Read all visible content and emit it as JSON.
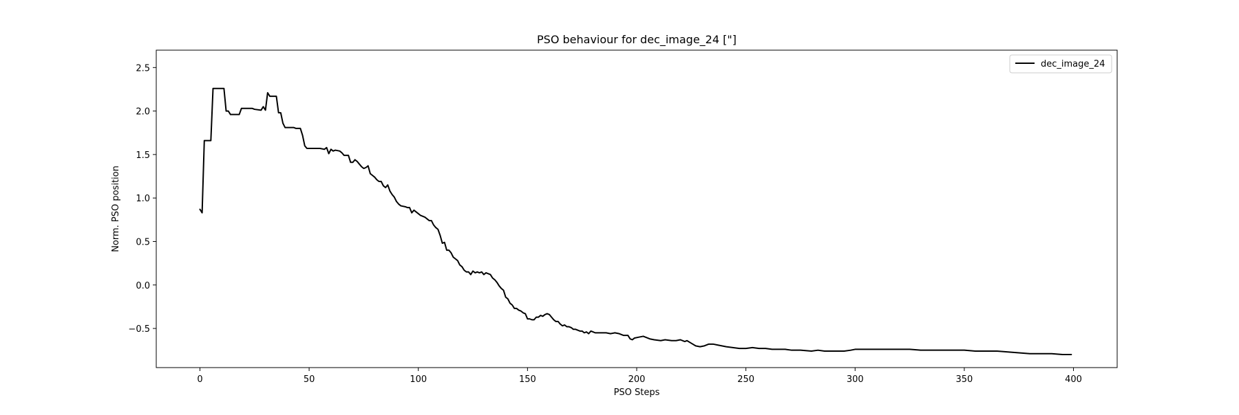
{
  "chart_data": {
    "type": "line",
    "title": "PSO behaviour for dec_image_24 [\"]",
    "xlabel": "PSO Steps",
    "ylabel": "Norm. PSO position",
    "xlim": [
      -20,
      420
    ],
    "ylim": [
      -0.95,
      2.7
    ],
    "xticks": [
      0,
      50,
      100,
      150,
      200,
      250,
      300,
      350,
      400
    ],
    "yticks": [
      -0.5,
      0.0,
      0.5,
      1.0,
      1.5,
      2.0,
      2.5
    ],
    "xtick_labels": [
      "0",
      "50",
      "100",
      "150",
      "200",
      "250",
      "300",
      "350",
      "400"
    ],
    "ytick_labels": [
      "−0.5",
      "0.0",
      "0.5",
      "1.0",
      "1.5",
      "2.0",
      "2.5"
    ],
    "grid": false,
    "legend": {
      "position": "top-right",
      "entries": [
        "dec_image_24"
      ]
    },
    "series": [
      {
        "name": "dec_image_24",
        "color": "#000000",
        "points": [
          [
            0,
            0.87
          ],
          [
            1,
            0.83
          ],
          [
            2,
            1.66
          ],
          [
            5,
            1.66
          ],
          [
            6,
            2.26
          ],
          [
            11,
            2.26
          ],
          [
            12,
            2.0
          ],
          [
            13,
            2.0
          ],
          [
            14,
            1.96
          ],
          [
            18,
            1.96
          ],
          [
            19,
            2.03
          ],
          [
            24,
            2.03
          ],
          [
            25,
            2.02
          ],
          [
            28,
            2.01
          ],
          [
            29,
            2.05
          ],
          [
            30,
            2.01
          ],
          [
            31,
            2.21
          ],
          [
            32,
            2.17
          ],
          [
            35,
            2.17
          ],
          [
            36,
            1.98
          ],
          [
            37,
            1.98
          ],
          [
            38,
            1.86
          ],
          [
            39,
            1.81
          ],
          [
            43,
            1.81
          ],
          [
            44,
            1.8
          ],
          [
            46,
            1.8
          ],
          [
            47,
            1.72
          ],
          [
            48,
            1.6
          ],
          [
            49,
            1.57
          ],
          [
            55,
            1.57
          ],
          [
            57,
            1.56
          ],
          [
            58,
            1.58
          ],
          [
            59,
            1.51
          ],
          [
            60,
            1.56
          ],
          [
            61,
            1.54
          ],
          [
            62,
            1.55
          ],
          [
            64,
            1.54
          ],
          [
            65,
            1.52
          ],
          [
            66,
            1.49
          ],
          [
            68,
            1.49
          ],
          [
            69,
            1.41
          ],
          [
            70,
            1.41
          ],
          [
            71,
            1.44
          ],
          [
            72,
            1.42
          ],
          [
            73,
            1.39
          ],
          [
            74,
            1.36
          ],
          [
            75,
            1.34
          ],
          [
            76,
            1.35
          ],
          [
            77,
            1.37
          ],
          [
            78,
            1.28
          ],
          [
            79,
            1.26
          ],
          [
            80,
            1.24
          ],
          [
            81,
            1.21
          ],
          [
            82,
            1.19
          ],
          [
            83,
            1.19
          ],
          [
            84,
            1.14
          ],
          [
            85,
            1.12
          ],
          [
            86,
            1.15
          ],
          [
            87,
            1.08
          ],
          [
            88,
            1.04
          ],
          [
            89,
            1.01
          ],
          [
            90,
            0.96
          ],
          [
            91,
            0.93
          ],
          [
            92,
            0.91
          ],
          [
            94,
            0.9
          ],
          [
            95,
            0.89
          ],
          [
            96,
            0.89
          ],
          [
            97,
            0.83
          ],
          [
            98,
            0.86
          ],
          [
            99,
            0.84
          ],
          [
            100,
            0.82
          ],
          [
            101,
            0.8
          ],
          [
            103,
            0.78
          ],
          [
            104,
            0.76
          ],
          [
            105,
            0.74
          ],
          [
            106,
            0.74
          ],
          [
            107,
            0.69
          ],
          [
            108,
            0.66
          ],
          [
            109,
            0.64
          ],
          [
            110,
            0.57
          ],
          [
            111,
            0.48
          ],
          [
            112,
            0.49
          ],
          [
            113,
            0.4
          ],
          [
            114,
            0.4
          ],
          [
            115,
            0.37
          ],
          [
            116,
            0.32
          ],
          [
            117,
            0.3
          ],
          [
            118,
            0.28
          ],
          [
            119,
            0.23
          ],
          [
            120,
            0.21
          ],
          [
            121,
            0.17
          ],
          [
            122,
            0.15
          ],
          [
            123,
            0.15
          ],
          [
            124,
            0.12
          ],
          [
            125,
            0.16
          ],
          [
            126,
            0.14
          ],
          [
            127,
            0.15
          ],
          [
            128,
            0.14
          ],
          [
            129,
            0.15
          ],
          [
            130,
            0.12
          ],
          [
            131,
            0.14
          ],
          [
            132,
            0.13
          ],
          [
            133,
            0.12
          ],
          [
            134,
            0.08
          ],
          [
            135,
            0.06
          ],
          [
            136,
            0.03
          ],
          [
            137,
            -0.01
          ],
          [
            138,
            -0.04
          ],
          [
            139,
            -0.06
          ],
          [
            140,
            -0.14
          ],
          [
            141,
            -0.16
          ],
          [
            142,
            -0.21
          ],
          [
            143,
            -0.23
          ],
          [
            144,
            -0.27
          ],
          [
            145,
            -0.27
          ],
          [
            146,
            -0.29
          ],
          [
            147,
            -0.3
          ],
          [
            148,
            -0.32
          ],
          [
            149,
            -0.33
          ],
          [
            150,
            -0.39
          ],
          [
            151,
            -0.39
          ],
          [
            152,
            -0.4
          ],
          [
            153,
            -0.4
          ],
          [
            154,
            -0.37
          ],
          [
            155,
            -0.37
          ],
          [
            156,
            -0.35
          ],
          [
            157,
            -0.36
          ],
          [
            158,
            -0.34
          ],
          [
            159,
            -0.33
          ],
          [
            160,
            -0.34
          ],
          [
            161,
            -0.37
          ],
          [
            162,
            -0.4
          ],
          [
            163,
            -0.42
          ],
          [
            164,
            -0.42
          ],
          [
            165,
            -0.45
          ],
          [
            166,
            -0.47
          ],
          [
            167,
            -0.46
          ],
          [
            168,
            -0.48
          ],
          [
            169,
            -0.48
          ],
          [
            170,
            -0.49
          ],
          [
            171,
            -0.51
          ],
          [
            172,
            -0.51
          ],
          [
            173,
            -0.52
          ],
          [
            174,
            -0.53
          ],
          [
            175,
            -0.53
          ],
          [
            176,
            -0.55
          ],
          [
            177,
            -0.54
          ],
          [
            178,
            -0.56
          ],
          [
            179,
            -0.53
          ],
          [
            180,
            -0.54
          ],
          [
            181,
            -0.55
          ],
          [
            182,
            -0.55
          ],
          [
            184,
            -0.55
          ],
          [
            186,
            -0.55
          ],
          [
            188,
            -0.56
          ],
          [
            190,
            -0.55
          ],
          [
            192,
            -0.56
          ],
          [
            194,
            -0.58
          ],
          [
            196,
            -0.58
          ],
          [
            197,
            -0.62
          ],
          [
            198,
            -0.63
          ],
          [
            199,
            -0.61
          ],
          [
            201,
            -0.6
          ],
          [
            203,
            -0.59
          ],
          [
            204,
            -0.6
          ],
          [
            206,
            -0.62
          ],
          [
            208,
            -0.63
          ],
          [
            211,
            -0.64
          ],
          [
            213,
            -0.63
          ],
          [
            216,
            -0.64
          ],
          [
            218,
            -0.64
          ],
          [
            220,
            -0.63
          ],
          [
            222,
            -0.65
          ],
          [
            223,
            -0.64
          ],
          [
            225,
            -0.67
          ],
          [
            227,
            -0.7
          ],
          [
            229,
            -0.71
          ],
          [
            231,
            -0.7
          ],
          [
            233,
            -0.68
          ],
          [
            235,
            -0.68
          ],
          [
            237,
            -0.69
          ],
          [
            239,
            -0.7
          ],
          [
            241,
            -0.71
          ],
          [
            244,
            -0.72
          ],
          [
            247,
            -0.73
          ],
          [
            250,
            -0.73
          ],
          [
            253,
            -0.72
          ],
          [
            256,
            -0.73
          ],
          [
            259,
            -0.73
          ],
          [
            262,
            -0.74
          ],
          [
            265,
            -0.74
          ],
          [
            268,
            -0.74
          ],
          [
            271,
            -0.75
          ],
          [
            275,
            -0.75
          ],
          [
            280,
            -0.76
          ],
          [
            283,
            -0.75
          ],
          [
            286,
            -0.76
          ],
          [
            290,
            -0.76
          ],
          [
            295,
            -0.76
          ],
          [
            298,
            -0.75
          ],
          [
            300,
            -0.74
          ],
          [
            305,
            -0.74
          ],
          [
            310,
            -0.74
          ],
          [
            315,
            -0.74
          ],
          [
            320,
            -0.74
          ],
          [
            325,
            -0.74
          ],
          [
            330,
            -0.75
          ],
          [
            335,
            -0.75
          ],
          [
            340,
            -0.75
          ],
          [
            345,
            -0.75
          ],
          [
            350,
            -0.75
          ],
          [
            355,
            -0.76
          ],
          [
            360,
            -0.76
          ],
          [
            365,
            -0.76
          ],
          [
            370,
            -0.77
          ],
          [
            375,
            -0.78
          ],
          [
            380,
            -0.79
          ],
          [
            385,
            -0.79
          ],
          [
            390,
            -0.79
          ],
          [
            395,
            -0.8
          ],
          [
            399,
            -0.8
          ]
        ]
      }
    ]
  }
}
